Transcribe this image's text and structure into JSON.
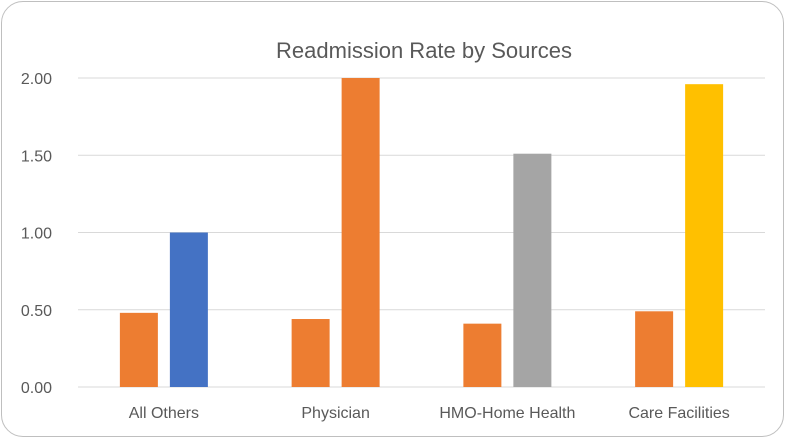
{
  "chart_data": {
    "type": "bar",
    "title": "Readmission Rate by Sources",
    "categories": [
      "All Others",
      "Physician",
      "HMO-Home Health",
      "Care Facilities"
    ],
    "bars": [
      {
        "category": "All Others",
        "values": [
          0.48,
          1.0
        ],
        "colors": [
          "#ed7d31",
          "#4472c4"
        ]
      },
      {
        "category": "Physician",
        "values": [
          0.44,
          2.0
        ],
        "colors": [
          "#ed7d31",
          "#ed7d31"
        ]
      },
      {
        "category": "HMO-Home Health",
        "values": [
          0.41,
          1.51
        ],
        "colors": [
          "#ed7d31",
          "#a5a5a5"
        ]
      },
      {
        "category": "Care Facilities",
        "values": [
          0.49,
          1.96
        ],
        "colors": [
          "#ed7d31",
          "#ffc000"
        ]
      }
    ],
    "ylim": [
      0,
      2.0
    ],
    "yticks": [
      "0.00",
      "0.50",
      "1.00",
      "1.50",
      "2.00"
    ],
    "ytick_values": [
      0,
      0.5,
      1.0,
      1.5,
      2.0
    ],
    "grid": true,
    "xlabel": "",
    "ylabel": ""
  }
}
